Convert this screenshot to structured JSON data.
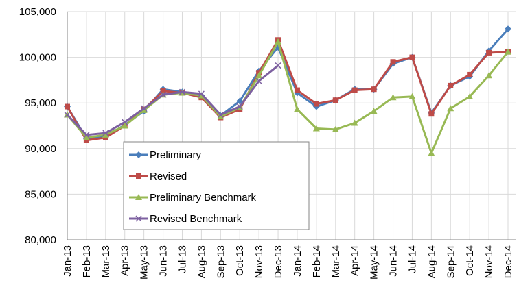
{
  "chart_data": {
    "type": "line",
    "categories": [
      "Jan-13",
      "Feb-13",
      "Mar-13",
      "Apr-13",
      "May-13",
      "Jun-13",
      "Jul-13",
      "Aug-13",
      "Sep-13",
      "Oct-13",
      "Nov-13",
      "Dec-13",
      "Jan-14",
      "Feb-14",
      "Mar-14",
      "Apr-14",
      "May-14",
      "Jun-14",
      "Jul-14",
      "Aug-14",
      "Sep-14",
      "Oct-14",
      "Nov-14",
      "Dec-14"
    ],
    "series": [
      {
        "name": "Preliminary",
        "color": "#4a7ebb",
        "marker": "diamond",
        "values": [
          94600,
          91100,
          91300,
          92600,
          94100,
          96500,
          96200,
          95800,
          93600,
          95200,
          98500,
          101100,
          96100,
          94600,
          95300,
          96500,
          96500,
          99300,
          100000,
          93900,
          96900,
          97900,
          100700,
          103100
        ]
      },
      {
        "name": "Revised",
        "color": "#be4b48",
        "marker": "square",
        "values": [
          94600,
          90900,
          91200,
          92500,
          94300,
          96300,
          96100,
          95600,
          93400,
          94300,
          98300,
          101900,
          96400,
          94900,
          95300,
          96400,
          96500,
          99500,
          100000,
          93800,
          96900,
          98100,
          100500,
          100600
        ]
      },
      {
        "name": "Preliminary Benchmark",
        "color": "#98b954",
        "marker": "triangle",
        "values": [
          93700,
          91200,
          91500,
          92500,
          94200,
          95900,
          96100,
          95800,
          93500,
          94500,
          98000,
          101700,
          94300,
          92200,
          92100,
          92800,
          94100,
          95600,
          95700,
          89500,
          94400,
          95700,
          98000,
          100600
        ]
      },
      {
        "name": "Revised Benchmark",
        "color": "#7d60a0",
        "marker": "x",
        "values": [
          93700,
          91500,
          91700,
          92900,
          94400,
          95900,
          96200,
          96000,
          93700,
          94600,
          97400,
          99100,
          null,
          null,
          null,
          null,
          null,
          null,
          null,
          null,
          null,
          null,
          null,
          null
        ]
      }
    ],
    "ylim": [
      80000,
      105000
    ],
    "yticks": [
      {
        "value": 80000,
        "label": "80,000"
      },
      {
        "value": 85000,
        "label": "85,000"
      },
      {
        "value": 90000,
        "label": "90,000"
      },
      {
        "value": 95000,
        "label": "95,000"
      },
      {
        "value": 100000,
        "label": "100,000"
      },
      {
        "value": 105000,
        "label": "105,000"
      }
    ],
    "grid": true,
    "legend": "lower-left"
  }
}
